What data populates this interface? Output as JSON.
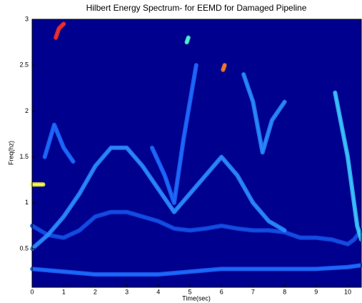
{
  "chart_data": {
    "type": "line",
    "title": "Hilbert Energy Spectrum- for EEMD for Damaged Pipeline",
    "x_label": "Time(sec)",
    "y_label": "Freq(hz)",
    "background": "#00008f",
    "xlim": [
      0,
      10.43
    ],
    "ylim": [
      0.08,
      3
    ],
    "xticks": [
      0,
      1,
      2,
      3,
      4,
      5,
      6,
      7,
      8,
      9,
      10
    ],
    "yticks": [
      0.5,
      1,
      1.5,
      2,
      2.5,
      3
    ],
    "series": [
      {
        "color": "#1e6cff",
        "x": [
          0,
          1,
          2,
          3,
          4,
          5,
          6,
          7,
          8,
          9,
          10,
          10.43
        ],
        "values": [
          0.28,
          0.25,
          0.22,
          0.22,
          0.22,
          0.25,
          0.28,
          0.28,
          0.28,
          0.28,
          0.3,
          0.32
        ]
      },
      {
        "color": "#1450e6",
        "x": [
          0,
          0.5,
          1,
          1.5,
          2,
          2.5,
          3,
          3.5,
          4,
          4.5,
          5,
          5.5,
          6,
          6.5,
          7,
          7.5,
          8,
          8.5,
          9,
          9.5,
          10,
          10.2,
          10.43
        ],
        "values": [
          0.75,
          0.65,
          0.62,
          0.7,
          0.85,
          0.9,
          0.9,
          0.85,
          0.8,
          0.72,
          0.7,
          0.72,
          0.75,
          0.72,
          0.7,
          0.7,
          0.68,
          0.62,
          0.62,
          0.6,
          0.55,
          0.6,
          0.7
        ]
      },
      {
        "color": "#2a8cff",
        "x": [
          0,
          0.5,
          1,
          1.5,
          2,
          2.5,
          3,
          3.5,
          4,
          4.5,
          5,
          5.5,
          6,
          6.5,
          7,
          7.5,
          8
        ],
        "values": [
          0.5,
          0.65,
          0.85,
          1.1,
          1.4,
          1.6,
          1.6,
          1.4,
          1.15,
          0.9,
          1.1,
          1.3,
          1.5,
          1.3,
          1.0,
          0.8,
          0.7
        ]
      },
      {
        "color": "#1e6cff",
        "x": [
          0.4,
          0.7,
          1,
          1.3
        ],
        "values": [
          1.5,
          1.85,
          1.6,
          1.45
        ]
      },
      {
        "color": "#1e6cff",
        "x": [
          3.8,
          4.2,
          4.5,
          4.8,
          5.2
        ],
        "values": [
          1.6,
          1.3,
          1.0,
          1.7,
          2.5
        ]
      },
      {
        "color": "#2a8cff",
        "x": [
          6.7,
          7,
          7.3,
          7.6,
          8
        ],
        "values": [
          2.4,
          2.1,
          1.55,
          1.9,
          2.1
        ]
      },
      {
        "color": "#3cc8ff",
        "x": [
          9.6,
          10,
          10.3,
          10.43
        ],
        "values": [
          2.2,
          1.5,
          0.75,
          0.6
        ]
      },
      {
        "color": "#ffff40",
        "x": [
          0,
          0.35
        ],
        "values": [
          1.2,
          1.2
        ]
      },
      {
        "color": "#ff3020",
        "x": [
          0.75,
          0.85,
          1.0
        ],
        "values": [
          2.8,
          2.9,
          2.95
        ]
      },
      {
        "color": "#ff8020",
        "x": [
          6.05,
          6.1
        ],
        "values": [
          2.45,
          2.5
        ]
      },
      {
        "color": "#50ffd0",
        "x": [
          4.9,
          4.95
        ],
        "values": [
          2.75,
          2.8
        ]
      }
    ]
  }
}
